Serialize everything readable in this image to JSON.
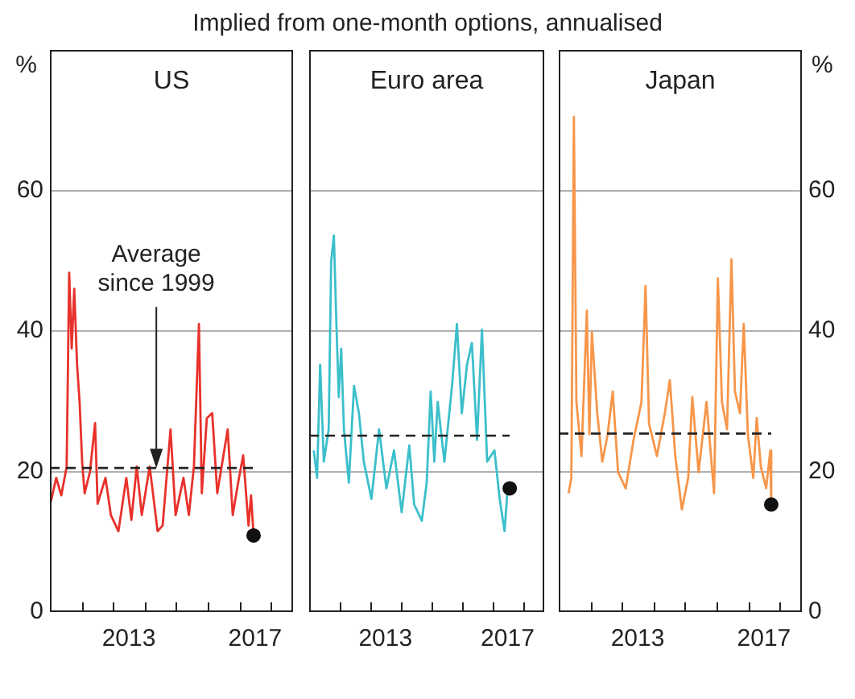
{
  "chart_data": [
    {
      "type": "line",
      "title": "US",
      "subtitle": "Implied from one-month options, annualised",
      "ylabel": "%",
      "xlim": [
        2011,
        2018.7
      ],
      "xticks": [
        {
          "value": 2012,
          "label": null
        },
        {
          "value": 2013,
          "label": null
        },
        {
          "value": 2013.5,
          "label": "2013"
        },
        {
          "value": 2014,
          "label": null
        },
        {
          "value": 2015,
          "label": null
        },
        {
          "value": 2016,
          "label": null
        },
        {
          "value": 2017,
          "label": null
        },
        {
          "value": 2017.5,
          "label": "2017"
        },
        {
          "value": 2018,
          "label": null
        }
      ],
      "ylim": [
        0,
        80
      ],
      "yticks": [
        0,
        20,
        40,
        60
      ],
      "grid": "y",
      "marker": "none",
      "series": [
        {
          "type": "line",
          "color": "#e8312b",
          "x": [
            2011.03,
            2011.2,
            2011.36,
            2011.53,
            2011.61,
            2011.69,
            2011.77,
            2011.86,
            2011.94,
            2012.02,
            2012.1,
            2012.27,
            2012.43,
            2012.51,
            2012.76,
            2012.93,
            2013.17,
            2013.42,
            2013.58,
            2013.75,
            2013.91,
            2014.16,
            2014.41,
            2014.57,
            2014.82,
            2014.98,
            2015.23,
            2015.4,
            2015.56,
            2015.72,
            2015.81,
            2015.97,
            2016.14,
            2016.3,
            2016.63,
            2016.79,
            2016.96,
            2017.12,
            2017.29,
            2017.37,
            2017.45
          ],
          "values": [
            15.7,
            19.1,
            16.6,
            20.7,
            48.3,
            37.5,
            46,
            35.2,
            29.9,
            21.4,
            16.9,
            20,
            26.9,
            15.4,
            19.1,
            13.8,
            11.5,
            19.1,
            13.1,
            20.7,
            13.8,
            20.7,
            11.5,
            12.3,
            26,
            13.8,
            19.1,
            13.8,
            20.7,
            41,
            16.9,
            27.6,
            28.3,
            16.9,
            26,
            13.8,
            18.4,
            22.3,
            12.3,
            16.6,
            10.9
          ]
        },
        {
          "type": "scatter",
          "color": "#111111",
          "marker": "circle",
          "x": [
            2017.45
          ],
          "values": [
            10.9
          ]
        }
      ],
      "ref_lines": [
        {
          "axis": "y",
          "value": 20.5,
          "line_style": "dashed",
          "color": "#222222"
        }
      ],
      "annotations": [
        {
          "text": "Average since 1999",
          "x": 2014.37,
          "y": 20.5
        }
      ]
    },
    {
      "type": "line",
      "title": "Euro area",
      "xlim": [
        2011,
        2018.7
      ],
      "xticks": [
        {
          "value": 2012,
          "label": null
        },
        {
          "value": 2013,
          "label": null
        },
        {
          "value": 2013.5,
          "label": "2013"
        },
        {
          "value": 2014,
          "label": null
        },
        {
          "value": 2015,
          "label": null
        },
        {
          "value": 2016,
          "label": null
        },
        {
          "value": 2017,
          "label": null
        },
        {
          "value": 2017.5,
          "label": "2017"
        },
        {
          "value": 2018,
          "label": null
        }
      ],
      "ylim": [
        0,
        80
      ],
      "yticks": [
        0,
        20,
        40,
        60
      ],
      "grid": "y",
      "tick_labels": "x",
      "marker": "none",
      "series": [
        {
          "type": "line",
          "color": "#3bbfcb",
          "x": [
            2011.15,
            2011.26,
            2011.36,
            2011.48,
            2011.64,
            2011.72,
            2011.81,
            2011.89,
            2011.97,
            2012.05,
            2012.14,
            2012.3,
            2012.47,
            2012.63,
            2012.79,
            2013.04,
            2013.29,
            2013.53,
            2013.78,
            2014.03,
            2014.28,
            2014.44,
            2014.69,
            2014.85,
            2014.98,
            2015.1,
            2015.21,
            2015.43,
            2015.68,
            2015.84,
            2016.0,
            2016.17,
            2016.33,
            2016.5,
            2016.66,
            2016.83,
            2017.07,
            2017.24,
            2017.4,
            2017.49,
            2017.57
          ],
          "values": [
            23,
            19.1,
            35.2,
            21.4,
            26,
            49.8,
            53.6,
            41.4,
            30.6,
            37.5,
            26,
            18.4,
            32.2,
            28.3,
            21.4,
            16.1,
            26,
            17.6,
            23,
            14.2,
            23.7,
            15.3,
            13,
            18.4,
            31.4,
            21.4,
            29.9,
            21.4,
            32.2,
            41,
            28.3,
            35.2,
            38.3,
            24.5,
            40.2,
            21.4,
            23,
            16.1,
            11.5,
            16.9,
            17.6
          ]
        },
        {
          "type": "scatter",
          "color": "#111111",
          "marker": "circle",
          "x": [
            2017.57
          ],
          "values": [
            17.6
          ]
        }
      ],
      "ref_lines": [
        {
          "axis": "y",
          "value": 25.1,
          "line_style": "dashed",
          "color": "#222222"
        }
      ]
    },
    {
      "type": "line",
      "title": "Japan",
      "y2label": "%",
      "xlim": [
        2011,
        2018.7
      ],
      "xticks": [
        {
          "value": 2012,
          "label": null
        },
        {
          "value": 2013,
          "label": null
        },
        {
          "value": 2013.5,
          "label": "2013"
        },
        {
          "value": 2014,
          "label": null
        },
        {
          "value": 2015,
          "label": null
        },
        {
          "value": 2016,
          "label": null
        },
        {
          "value": 2017,
          "label": null
        },
        {
          "value": 2017.5,
          "label": "2017"
        },
        {
          "value": 2018,
          "label": null
        }
      ],
      "y2lim": [
        0,
        80
      ],
      "y2ticks": [
        0,
        20,
        40,
        60
      ],
      "grid": "y",
      "marker": "none",
      "series": [
        {
          "type": "line",
          "axis": "y2",
          "color": "#f7964a",
          "x": [
            2011.31,
            2011.4,
            2011.48,
            2011.56,
            2011.72,
            2011.89,
            2011.97,
            2012.05,
            2012.22,
            2012.38,
            2012.55,
            2012.71,
            2012.88,
            2013.12,
            2013.37,
            2013.62,
            2013.75,
            2013.86,
            2014.11,
            2014.36,
            2014.52,
            2014.69,
            2014.9,
            2015.1,
            2015.23,
            2015.43,
            2015.68,
            2015.92,
            2016.04,
            2016.17,
            2016.33,
            2016.47,
            2016.58,
            2016.74,
            2016.86,
            2016.99,
            2017.16,
            2017.27,
            2017.4,
            2017.57,
            2017.7,
            2017.73
          ],
          "values": [
            16.9,
            19.1,
            70.5,
            29.9,
            22.2,
            42.9,
            25.3,
            39.8,
            28.3,
            21.4,
            25.3,
            31.4,
            19.9,
            17.6,
            24.5,
            29.9,
            46.4,
            26.8,
            22.2,
            28.3,
            33,
            22.2,
            14.6,
            19.1,
            30.6,
            19.9,
            29.9,
            16.9,
            47.5,
            29.9,
            26,
            50.2,
            31.4,
            28.3,
            41,
            25.3,
            19.1,
            27.6,
            20.7,
            17.6,
            23,
            15.3
          ]
        },
        {
          "type": "scatter",
          "axis": "y2",
          "color": "#111111",
          "marker": "circle",
          "x": [
            2017.73
          ],
          "values": [
            15.3
          ]
        }
      ],
      "ref_lines": [
        {
          "axis": "y2",
          "value": 25.4,
          "line_style": "dashed",
          "color": "#222222"
        }
      ]
    }
  ]
}
